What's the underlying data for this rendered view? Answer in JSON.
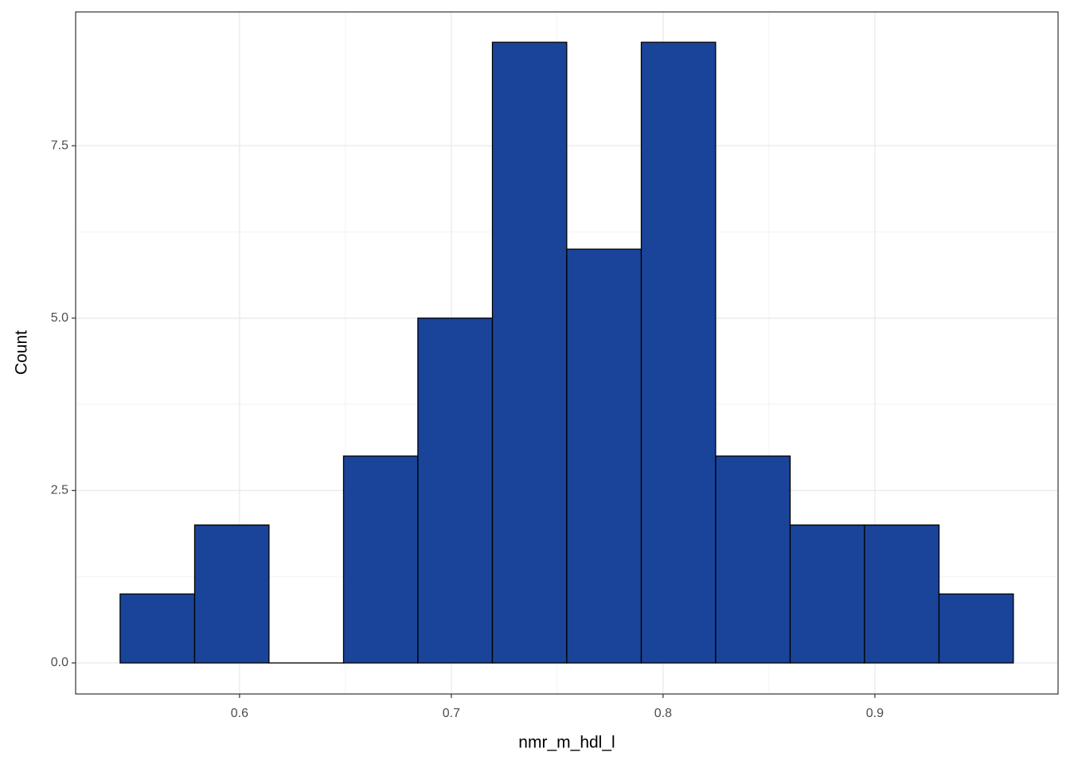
{
  "chart_data": {
    "type": "histogram",
    "x_label": "nmr_m_hdl_l",
    "y_label": "Count",
    "bins": [
      0.5436,
      0.5788,
      0.6139,
      0.6491,
      0.6842,
      0.7194,
      0.7545,
      0.7897,
      0.8248,
      0.86,
      0.8951,
      0.9303,
      0.9654
    ],
    "values": [
      1,
      2,
      0,
      3,
      5,
      9,
      6,
      9,
      3,
      2,
      2,
      1
    ],
    "color": "#1a4499",
    "xlim": [
      0.5226,
      0.9865
    ],
    "xticks": [
      0.6,
      0.7,
      0.8,
      0.9
    ],
    "ylim": [
      -0.45,
      9.44
    ],
    "yticks": [
      {
        "value": 0,
        "label": "0.0"
      },
      {
        "value": 2.5,
        "label": "2.5"
      },
      {
        "value": 5,
        "label": "5.0"
      },
      {
        "value": 7.5,
        "label": "7.5"
      }
    ],
    "grid": true
  }
}
